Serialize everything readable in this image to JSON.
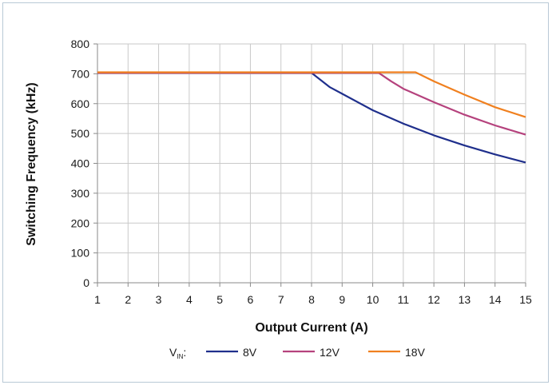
{
  "chart_data": {
    "type": "line",
    "xlabel": "Output Current (A)",
    "ylabel": "Switching Frequency (kHz)",
    "xlim": [
      1,
      15
    ],
    "ylim": [
      0,
      800
    ],
    "xticks": [
      1,
      2,
      3,
      4,
      5,
      6,
      7,
      8,
      9,
      10,
      11,
      12,
      13,
      14,
      15
    ],
    "yticks": [
      0,
      100,
      200,
      300,
      400,
      500,
      600,
      700,
      800
    ],
    "grid": true,
    "legend": {
      "position": "bottom",
      "prefix_main": "V",
      "prefix_sub": "IN",
      "prefix_suffix": ":"
    },
    "series": [
      {
        "name": "8V",
        "color": "#1f2f8c",
        "x": [
          1,
          8,
          8.6,
          9,
          10,
          11,
          12,
          13,
          14,
          15
        ],
        "y": [
          703,
          703,
          655,
          633,
          578,
          533,
          494,
          460,
          430,
          403
        ]
      },
      {
        "name": "12V",
        "color": "#b5427d",
        "x": [
          1,
          10.2,
          10.6,
          11,
          12,
          13,
          14,
          15
        ],
        "y": [
          703,
          703,
          675,
          650,
          605,
          563,
          527,
          496
        ]
      },
      {
        "name": "18V",
        "color": "#f0801f",
        "x": [
          1,
          11.4,
          12,
          13,
          14,
          15
        ],
        "y": [
          705,
          705,
          675,
          630,
          588,
          555
        ]
      }
    ]
  }
}
